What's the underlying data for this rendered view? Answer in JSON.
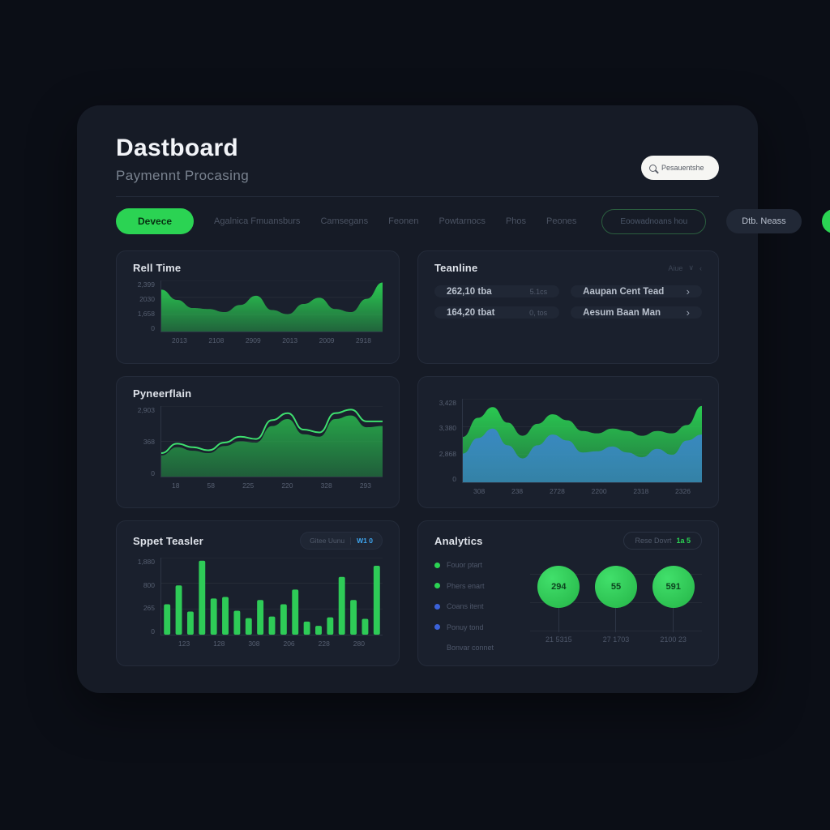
{
  "page": {
    "title": "Dastboard",
    "subtitle": "Paymennt Procasing"
  },
  "search": {
    "placeholder": "Pesauentshe"
  },
  "nav": {
    "active": "Devece",
    "items": [
      "Agalnica Fmuansburs",
      "Camsegans",
      "Feonen",
      "Powtarnocs",
      "Phos",
      "Peones"
    ],
    "outlined_pill": "Eoowadnoans hou",
    "dark_pill": "Dtb. Neass",
    "add_icon": "÷"
  },
  "panels": {
    "teanline": {
      "title": "Teanline",
      "meta": "Aiue",
      "meta_icon1": "∨",
      "meta_icon2": "‹",
      "cards": [
        {
          "label": "262,10 tba",
          "value": "5.1cs"
        },
        {
          "label": "Aaupan Cent Tead",
          "chevron": "›"
        },
        {
          "label": "164,20 tbat",
          "value": "0, tos"
        },
        {
          "label": "Aesum Baan Man",
          "chevron": "›"
        }
      ]
    },
    "sppet": {
      "toggle_left": "Gitee Uunu",
      "toggle_right": "W1 0"
    },
    "analytics": {
      "pill_label": "Rese Dovrt",
      "pill_accent": "1a 5"
    }
  },
  "chart_data": [
    {
      "id": "realtime",
      "type": "area",
      "title": "Rell Time",
      "yticks": [
        "2,399",
        "2030",
        "1,658",
        "0"
      ],
      "xticks": [
        "2013",
        "2108",
        "2909",
        "2013",
        "2009",
        "2918"
      ],
      "ymax": 2500,
      "color": "#2bd353",
      "grid": true,
      "legend_position": "none",
      "values": [
        2050,
        1550,
        1150,
        1100,
        950,
        1300,
        1750,
        1050,
        850,
        1350,
        1650,
        1100,
        950,
        1600,
        2400
      ]
    },
    {
      "id": "pyneerflain",
      "type": "area-line",
      "title": "Pyneerflain",
      "yticks": [
        "2,903",
        "368",
        "0"
      ],
      "xticks": [
        "18",
        "58",
        "225",
        "220",
        "328",
        "293"
      ],
      "ymax": 3000,
      "color": "#28b24c",
      "line_color": "#3ee06f",
      "grid": true,
      "legend_position": "none",
      "values": [
        900,
        1250,
        1100,
        1000,
        1300,
        1500,
        1450,
        2150,
        2450,
        1800,
        1700,
        2450,
        2600,
        2100,
        2150
      ],
      "line_values": [
        1000,
        1400,
        1250,
        1120,
        1450,
        1700,
        1600,
        2400,
        2700,
        2000,
        1880,
        2700,
        2850,
        2350,
        2350
      ]
    },
    {
      "id": "stacked",
      "type": "stacked-area",
      "title": "",
      "yticks": [
        "3,428",
        "3,380",
        "2,868",
        "0"
      ],
      "xticks": [
        "308",
        "238",
        "2728",
        "2200",
        "2318",
        "2326"
      ],
      "ymax": 3500,
      "grid": true,
      "legend_position": "none",
      "series": [
        {
          "name": "green",
          "color": "#2bd353",
          "values": [
            1900,
            2700,
            3150,
            2500,
            1950,
            2450,
            2850,
            2600,
            2150,
            2050,
            2250,
            2150,
            1950,
            2150,
            2050,
            2400,
            3200
          ]
        },
        {
          "name": "blue",
          "color": "#3a86c8",
          "values": [
            1200,
            1850,
            2250,
            1550,
            1000,
            1550,
            2000,
            1750,
            1250,
            1300,
            1500,
            1250,
            1050,
            1400,
            1150,
            1750,
            2000
          ]
        }
      ]
    },
    {
      "id": "sppet",
      "type": "bar",
      "title": "Sppet Teasler",
      "yticks": [
        "1,880",
        "800",
        "265",
        "0"
      ],
      "xticks": [
        "123",
        "128",
        "308",
        "206",
        "228",
        "280"
      ],
      "ymax": 2000,
      "color": "#2ecb57",
      "grid": true,
      "legend_position": "none",
      "values": [
        790,
        1280,
        600,
        1920,
        940,
        980,
        620,
        430,
        900,
        470,
        790,
        1170,
        340,
        230,
        450,
        1500,
        900,
        410,
        1790
      ]
    },
    {
      "id": "analytics",
      "type": "bubble",
      "title": "Analytics",
      "legend": [
        {
          "label": "Fouor ptart",
          "color": "#2bd353"
        },
        {
          "label": "Phers enart",
          "color": "#2bd353"
        },
        {
          "label": "Coans itent",
          "color": "#3b62d9"
        },
        {
          "label": "Ponuy tond",
          "color": "#3b62d9"
        },
        {
          "label": "Bonvar connet",
          "color": null
        }
      ],
      "bubbles": [
        {
          "value": "294",
          "label": "21 5315"
        },
        {
          "value": "55",
          "label": "27 1703"
        },
        {
          "value": "591",
          "label": "2100 23"
        }
      ]
    }
  ]
}
